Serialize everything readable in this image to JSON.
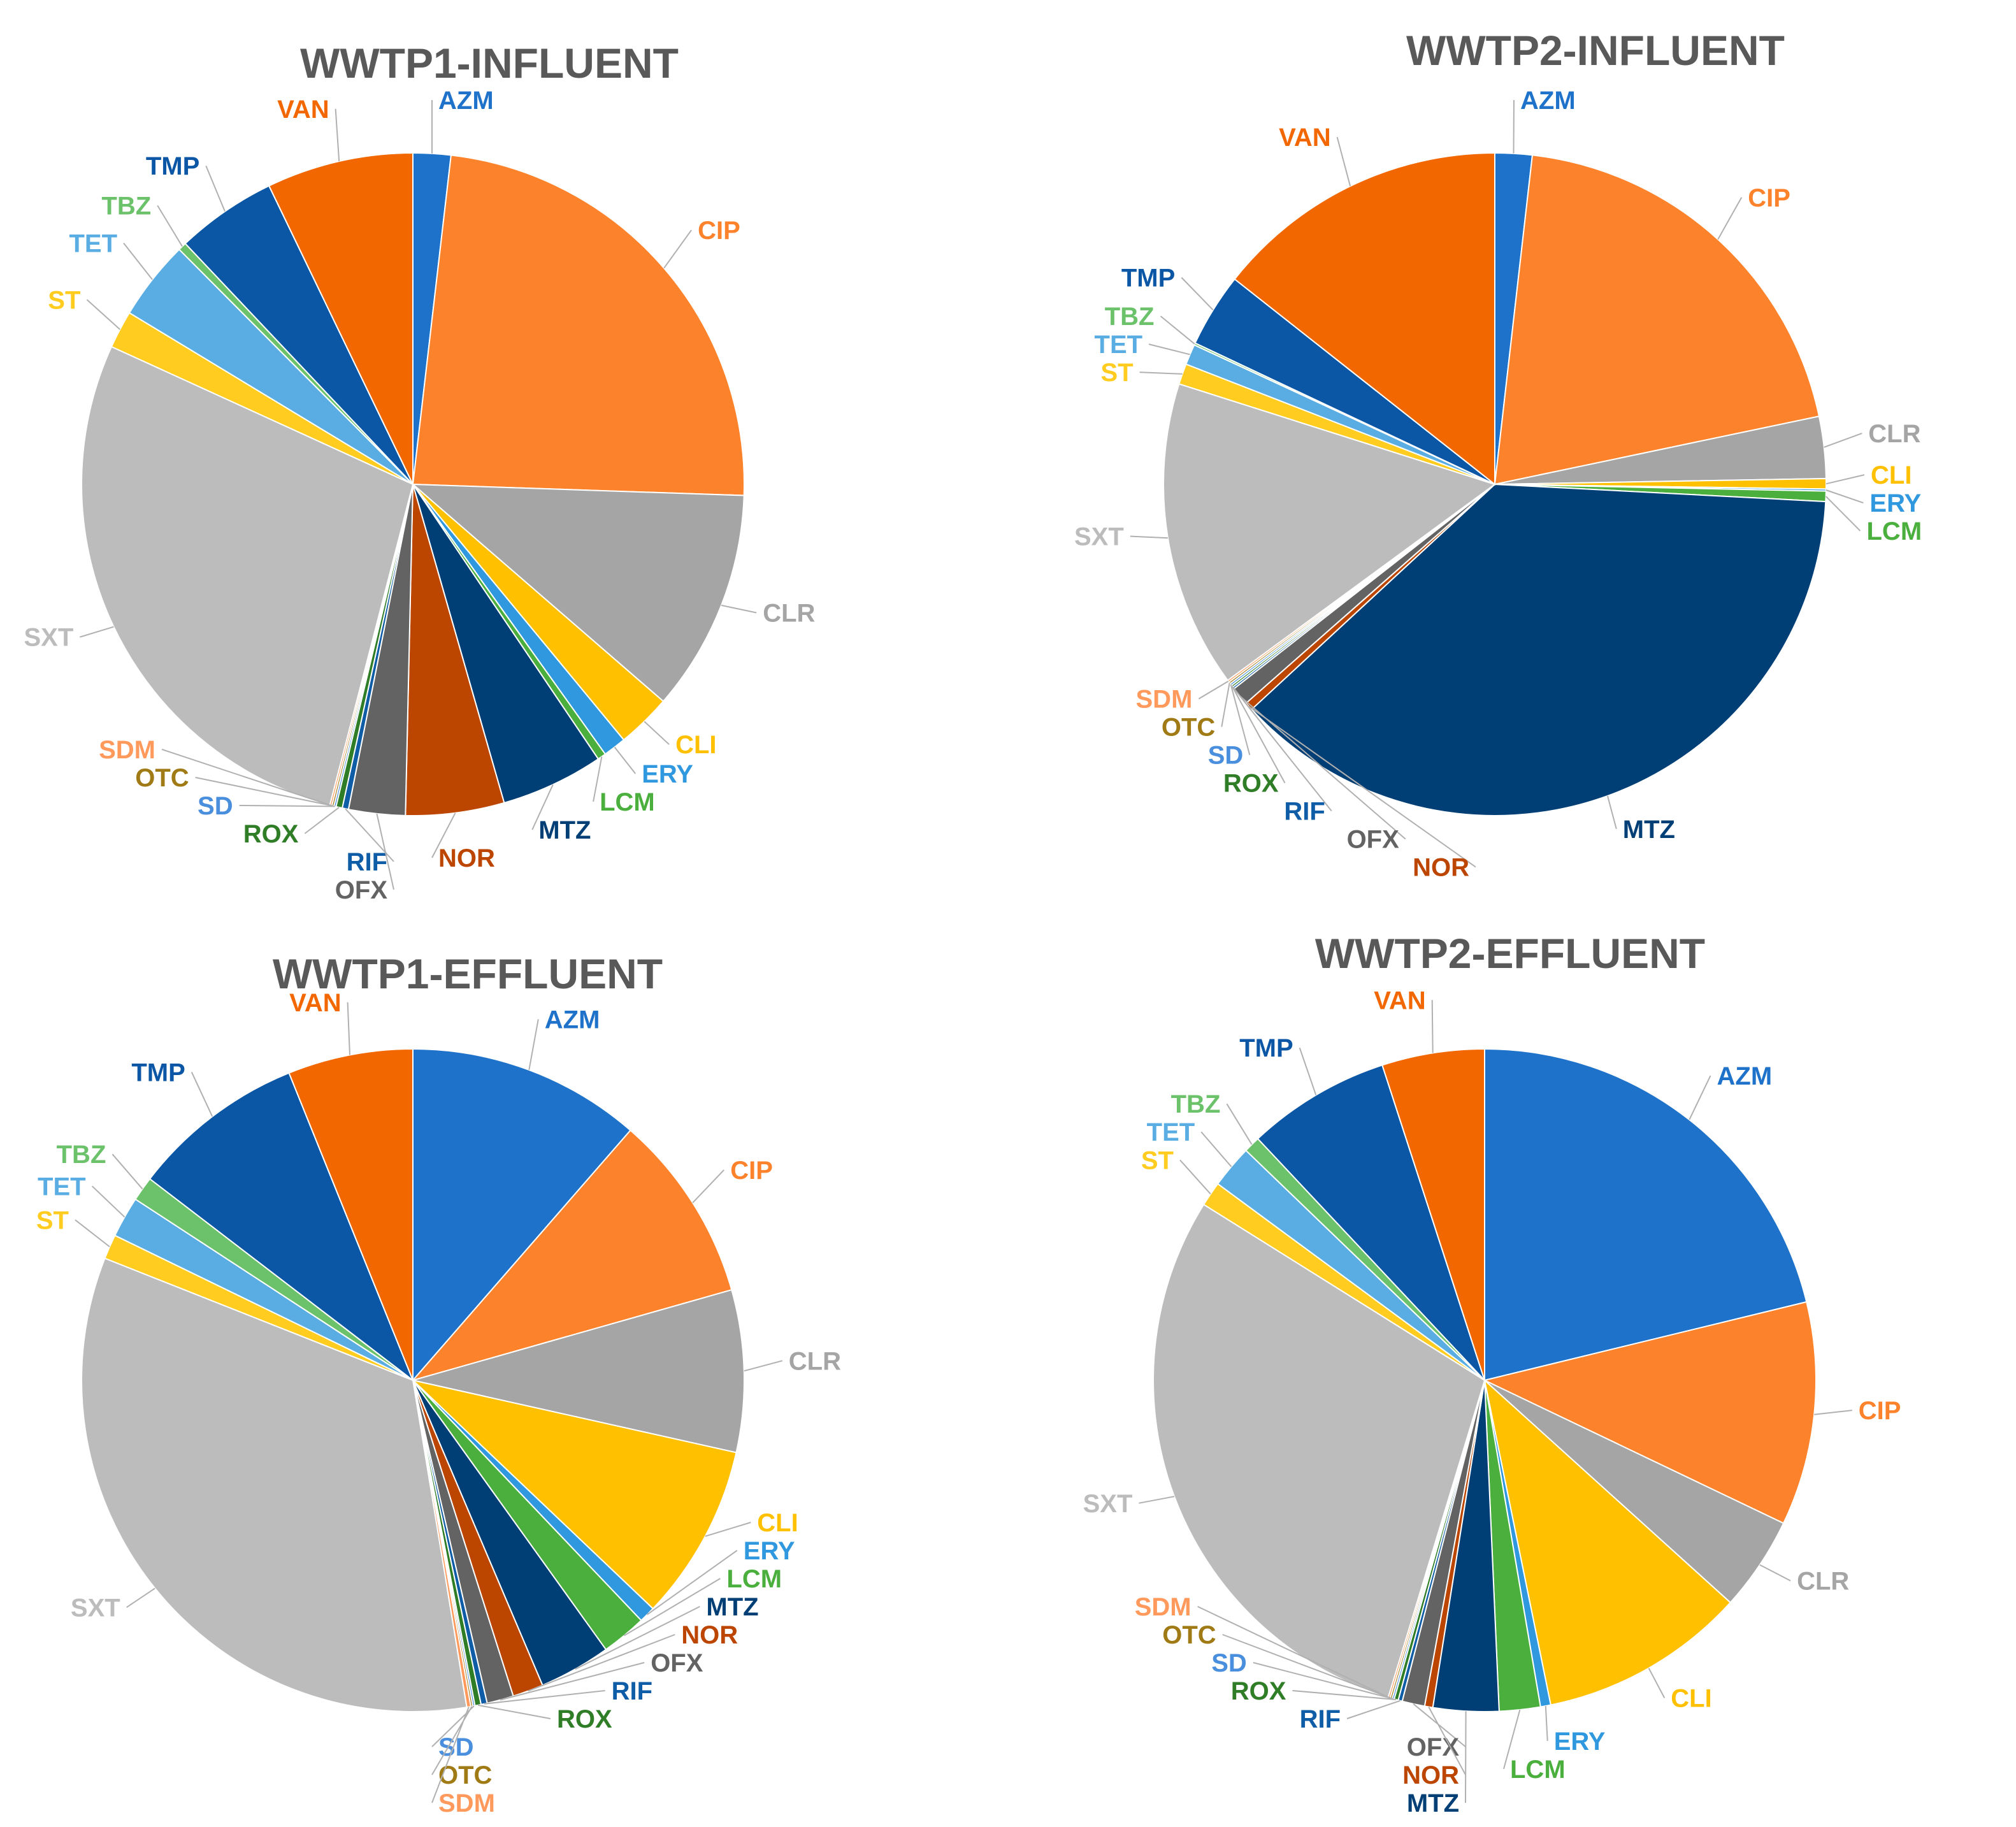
{
  "chart_data": [
    {
      "type": "pie",
      "title": "WWTP1-INFLUENT",
      "slices": [
        {
          "label": "AZM",
          "value": 1.8,
          "color": "#1f72c9"
        },
        {
          "label": "CIP",
          "value": 23.2,
          "color": "#fc832c"
        },
        {
          "label": "CLR",
          "value": 10.6,
          "color": "#a5a5a5"
        },
        {
          "label": "CLI",
          "value": 2.6,
          "color": "#ffc000"
        },
        {
          "label": "ERY",
          "value": 1.1,
          "color": "#2f98de"
        },
        {
          "label": "LCM",
          "value": 0.4,
          "color": "#4aaf3d"
        },
        {
          "label": "MTZ",
          "value": 4.9,
          "color": "#003f76"
        },
        {
          "label": "NOR",
          "value": 4.7,
          "color": "#bc4500"
        },
        {
          "label": "OFX",
          "value": 2.7,
          "color": "#636363"
        },
        {
          "label": "RIF",
          "value": 0.3,
          "color": "#0f5da6"
        },
        {
          "label": "ROX",
          "value": 0.3,
          "color": "#2f7d26"
        },
        {
          "label": "SD",
          "value": 0.1,
          "color": "#4a8fde"
        },
        {
          "label": "OTC",
          "value": 0.1,
          "color": "#a07a15"
        },
        {
          "label": "SDM",
          "value": 0.1,
          "color": "#ff9a5c"
        },
        {
          "label": "SXT",
          "value": 27.2,
          "color": "#bcbcbc"
        },
        {
          "label": "ST",
          "value": 1.8,
          "color": "#ffcc1f"
        },
        {
          "label": "TET",
          "value": 3.8,
          "color": "#5aade3"
        },
        {
          "label": "TBZ",
          "value": 0.4,
          "color": "#6cc26a"
        },
        {
          "label": "TMP",
          "value": 4.8,
          "color": "#0b57a6"
        },
        {
          "label": "VAN",
          "value": 7.0,
          "color": "#f26700"
        }
      ]
    },
    {
      "type": "pie",
      "title": "WWTP2-INFLUENT",
      "slices": [
        {
          "label": "AZM",
          "value": 1.8,
          "color": "#1f72c9"
        },
        {
          "label": "CIP",
          "value": 19.8,
          "color": "#fc832c"
        },
        {
          "label": "CLR",
          "value": 3.0,
          "color": "#a5a5a5"
        },
        {
          "label": "CLI",
          "value": 0.5,
          "color": "#ffc000"
        },
        {
          "label": "ERY",
          "value": 0.1,
          "color": "#2f98de"
        },
        {
          "label": "LCM",
          "value": 0.5,
          "color": "#4aaf3d"
        },
        {
          "label": "MTZ",
          "value": 37.1,
          "color": "#003f76"
        },
        {
          "label": "NOR",
          "value": 0.4,
          "color": "#bc4500"
        },
        {
          "label": "OFX",
          "value": 0.9,
          "color": "#636363"
        },
        {
          "label": "RIF",
          "value": 0.1,
          "color": "#0f5da6"
        },
        {
          "label": "ROX",
          "value": 0.1,
          "color": "#2f7d26"
        },
        {
          "label": "SD",
          "value": 0.1,
          "color": "#4a8fde"
        },
        {
          "label": "OTC",
          "value": 0.1,
          "color": "#a07a15"
        },
        {
          "label": "SDM",
          "value": 0.1,
          "color": "#ff9a5c"
        },
        {
          "label": "SXT",
          "value": 14.9,
          "color": "#bcbcbc"
        },
        {
          "label": "ST",
          "value": 1.0,
          "color": "#ffcc1f"
        },
        {
          "label": "TET",
          "value": 1.0,
          "color": "#5aade3"
        },
        {
          "label": "TBZ",
          "value": 0.1,
          "color": "#6cc26a"
        },
        {
          "label": "TMP",
          "value": 3.6,
          "color": "#0b57a6"
        },
        {
          "label": "VAN",
          "value": 14.3,
          "color": "#f26700"
        }
      ]
    },
    {
      "type": "pie",
      "title": "WWTP1-EFFLUENT",
      "slices": [
        {
          "label": "AZM",
          "value": 11.4,
          "color": "#1f72c9"
        },
        {
          "label": "CIP",
          "value": 9.2,
          "color": "#fc832c"
        },
        {
          "label": "CLR",
          "value": 7.9,
          "color": "#a5a5a5"
        },
        {
          "label": "CLI",
          "value": 8.6,
          "color": "#ffc000"
        },
        {
          "label": "ERY",
          "value": 0.8,
          "color": "#2f98de"
        },
        {
          "label": "LCM",
          "value": 2.2,
          "color": "#4aaf3d"
        },
        {
          "label": "MTZ",
          "value": 3.5,
          "color": "#003f76"
        },
        {
          "label": "NOR",
          "value": 1.5,
          "color": "#bc4500"
        },
        {
          "label": "OFX",
          "value": 1.3,
          "color": "#636363"
        },
        {
          "label": "RIF",
          "value": 0.3,
          "color": "#0f5da6"
        },
        {
          "label": "ROX",
          "value": 0.3,
          "color": "#2f7d26"
        },
        {
          "label": "SD",
          "value": 0.1,
          "color": "#4a8fde"
        },
        {
          "label": "OTC",
          "value": 0.1,
          "color": "#a07a15"
        },
        {
          "label": "SDM",
          "value": 0.2,
          "color": "#ff9a5c"
        },
        {
          "label": "SXT",
          "value": 33.6,
          "color": "#bcbcbc"
        },
        {
          "label": "ST",
          "value": 1.2,
          "color": "#ffcc1f"
        },
        {
          "label": "TET",
          "value": 2.0,
          "color": "#5aade3"
        },
        {
          "label": "TBZ",
          "value": 1.2,
          "color": "#6cc26a"
        },
        {
          "label": "TMP",
          "value": 8.5,
          "color": "#0b57a6"
        },
        {
          "label": "VAN",
          "value": 6.1,
          "color": "#f26700"
        }
      ]
    },
    {
      "type": "pie",
      "title": "WWTP2-EFFLUENT",
      "slices": [
        {
          "label": "AZM",
          "value": 21.2,
          "color": "#1f72c9"
        },
        {
          "label": "CIP",
          "value": 10.9,
          "color": "#fc832c"
        },
        {
          "label": "CLR",
          "value": 4.6,
          "color": "#a5a5a5"
        },
        {
          "label": "CLI",
          "value": 10.1,
          "color": "#ffc000"
        },
        {
          "label": "ERY",
          "value": 0.5,
          "color": "#2f98de"
        },
        {
          "label": "LCM",
          "value": 2.0,
          "color": "#4aaf3d"
        },
        {
          "label": "MTZ",
          "value": 3.2,
          "color": "#003f76"
        },
        {
          "label": "NOR",
          "value": 0.4,
          "color": "#bc4500"
        },
        {
          "label": "OFX",
          "value": 1.1,
          "color": "#636363"
        },
        {
          "label": "RIF",
          "value": 0.2,
          "color": "#0f5da6"
        },
        {
          "label": "ROX",
          "value": 0.2,
          "color": "#2f7d26"
        },
        {
          "label": "SD",
          "value": 0.1,
          "color": "#4a8fde"
        },
        {
          "label": "OTC",
          "value": 0.1,
          "color": "#a07a15"
        },
        {
          "label": "SDM",
          "value": 0.1,
          "color": "#ff9a5c"
        },
        {
          "label": "SXT",
          "value": 29.2,
          "color": "#bcbcbc"
        },
        {
          "label": "ST",
          "value": 1.2,
          "color": "#ffcc1f"
        },
        {
          "label": "TET",
          "value": 2.1,
          "color": "#5aade3"
        },
        {
          "label": "TBZ",
          "value": 0.8,
          "color": "#6cc26a"
        },
        {
          "label": "TMP",
          "value": 7.0,
          "color": "#0b57a6"
        },
        {
          "label": "VAN",
          "value": 5.0,
          "color": "#f26700"
        }
      ]
    }
  ]
}
